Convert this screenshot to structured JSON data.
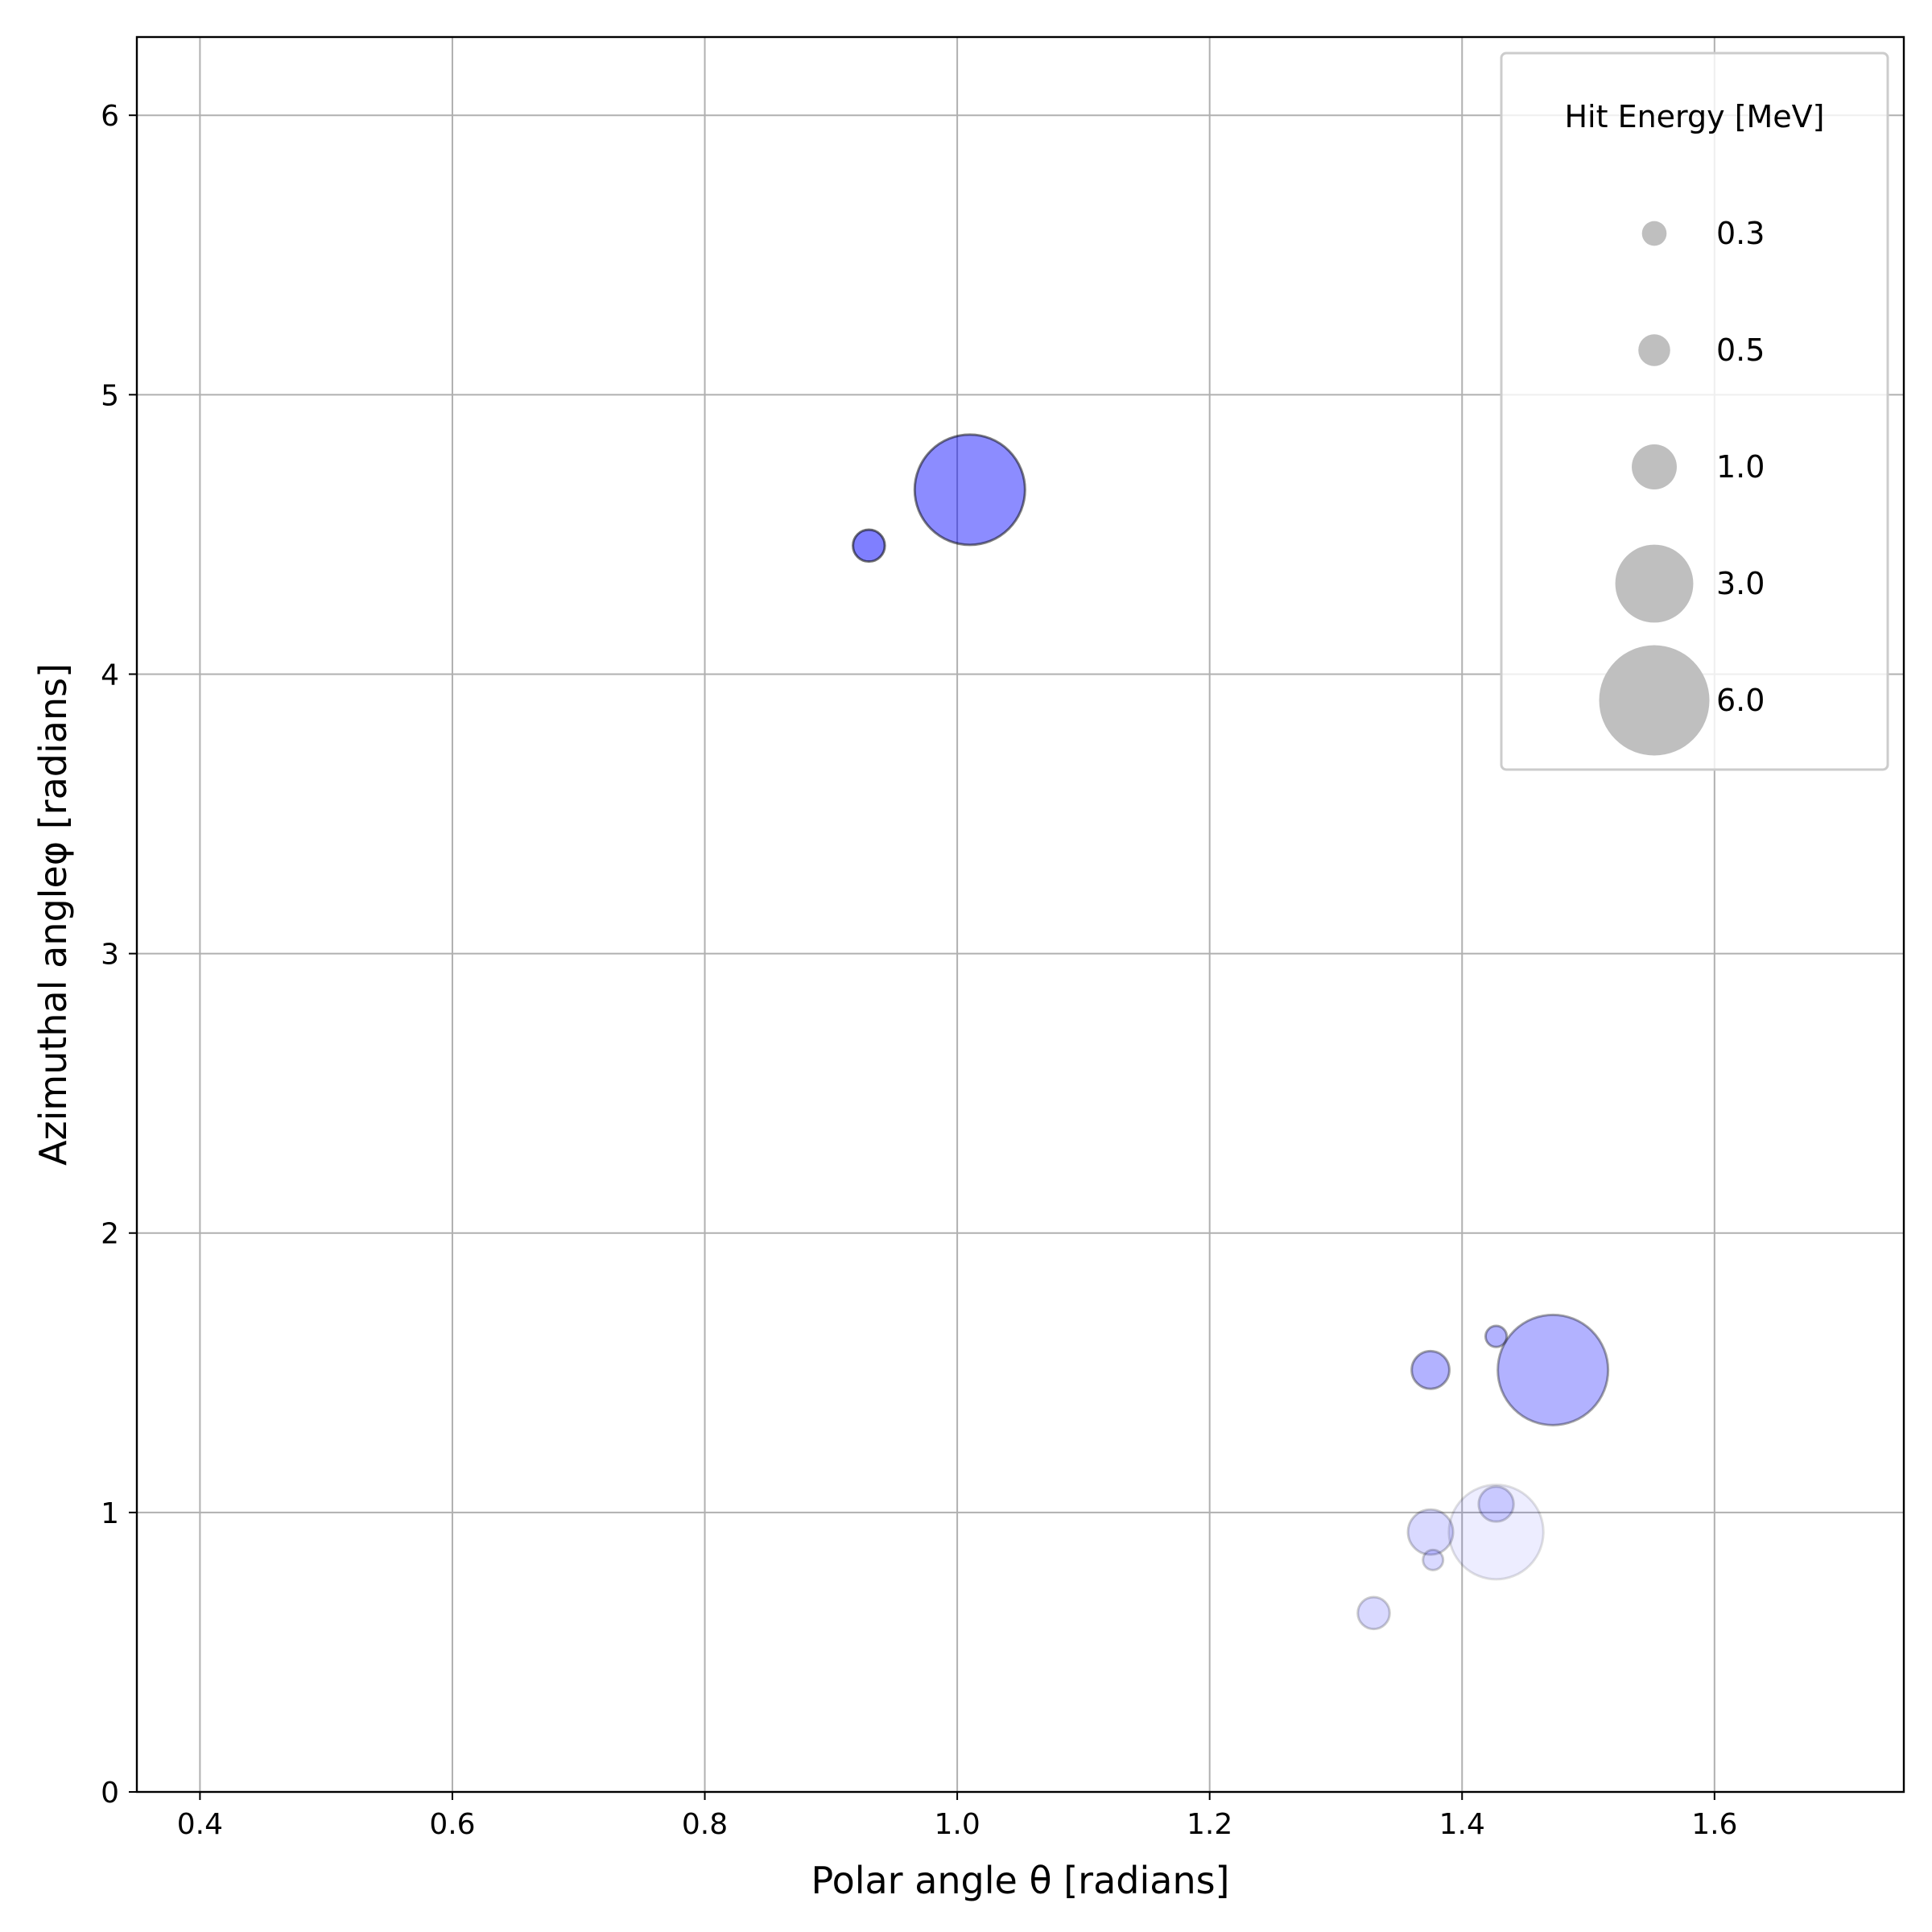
{
  "chart_data": {
    "type": "scatter",
    "title": "",
    "xlabel": "Polar angle θ [radians]",
    "ylabel": "Azimuthal angleφ [radians]",
    "xlim": [
      0.35,
      1.75
    ],
    "ylim": [
      0,
      6.28
    ],
    "xticks": [
      "0.4",
      "0.6",
      "0.8",
      "1.0",
      "1.2",
      "1.4",
      "1.6"
    ],
    "yticks": [
      "0",
      "1",
      "2",
      "3",
      "4",
      "5",
      "6"
    ],
    "grid": true,
    "marker_color": "#0000ff",
    "marker_edge_color": "#000000",
    "points": [
      {
        "theta": 0.93,
        "phi": 4.46,
        "energy": 0.5,
        "alpha": 0.5
      },
      {
        "theta": 1.01,
        "phi": 4.66,
        "energy": 6.0,
        "alpha": 0.45
      },
      {
        "theta": 1.375,
        "phi": 1.51,
        "energy": 0.7,
        "alpha": 0.3
      },
      {
        "theta": 1.427,
        "phi": 1.63,
        "energy": 0.22,
        "alpha": 0.3
      },
      {
        "theta": 1.472,
        "phi": 1.51,
        "energy": 6.0,
        "alpha": 0.3
      },
      {
        "theta": 1.427,
        "phi": 1.03,
        "energy": 0.6,
        "alpha": 0.15
      },
      {
        "theta": 1.375,
        "phi": 0.93,
        "energy": 1.0,
        "alpha": 0.15
      },
      {
        "theta": 1.377,
        "phi": 0.83,
        "energy": 0.2,
        "alpha": 0.15
      },
      {
        "theta": 1.427,
        "phi": 0.93,
        "energy": 4.4,
        "alpha": 0.07
      },
      {
        "theta": 1.33,
        "phi": 0.64,
        "energy": 0.5,
        "alpha": 0.15
      }
    ],
    "legend": {
      "title": "Hit Energy [MeV]",
      "placement": "top-right",
      "entries": [
        {
          "label": "0.3",
          "energy": 0.3
        },
        {
          "label": "0.5",
          "energy": 0.5
        },
        {
          "label": "1.0",
          "energy": 1.0
        },
        {
          "label": "3.0",
          "energy": 3.0
        },
        {
          "label": "6.0",
          "energy": 6.0
        }
      ],
      "marker_color": "#bfbfbf"
    }
  }
}
